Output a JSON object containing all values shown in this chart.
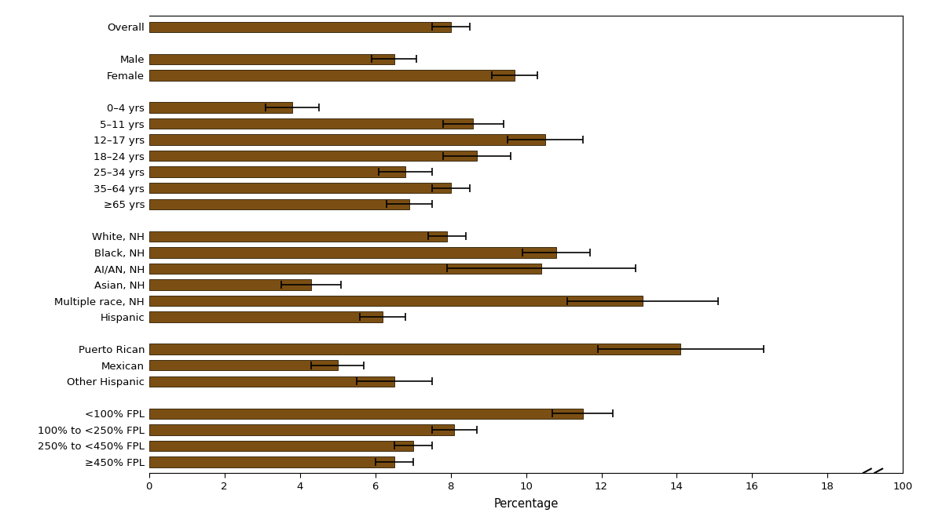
{
  "categories": [
    "Overall",
    "",
    "Male",
    "Female",
    " ",
    "0–4 yrs",
    "5–11 yrs",
    "12–17 yrs",
    "18–24 yrs",
    "25–34 yrs",
    "35–64 yrs",
    "≥65 yrs",
    "  ",
    "White, NH",
    "Black, NH",
    "AI/AN, NH",
    "Asian, NH",
    "Multiple race, NH",
    "Hispanic",
    "   ",
    "Puerto Rican",
    "Mexican",
    "Other Hispanic",
    "    ",
    "<100% FPL",
    "100% to <250% FPL",
    "250% to <450% FPL",
    "≥450% FPL"
  ],
  "values": [
    8.0,
    null,
    6.5,
    9.7,
    null,
    3.8,
    8.6,
    10.5,
    8.7,
    6.8,
    8.0,
    6.9,
    null,
    7.9,
    10.8,
    10.4,
    4.3,
    13.1,
    6.2,
    null,
    14.1,
    5.0,
    6.5,
    null,
    11.5,
    8.1,
    7.0,
    6.5
  ],
  "errors": [
    0.5,
    null,
    0.6,
    0.6,
    null,
    0.7,
    0.8,
    1.0,
    0.9,
    0.7,
    0.5,
    0.6,
    null,
    0.5,
    0.9,
    2.5,
    0.8,
    2.0,
    0.6,
    null,
    2.2,
    0.7,
    1.0,
    null,
    0.8,
    0.6,
    0.5,
    0.5
  ],
  "bar_color": "#7B4F13",
  "bar_edge_color": "#2a1a00",
  "background_color": "#ffffff",
  "axis_label": "Percentage",
  "bar_height": 0.65,
  "label_fontsize": 9.5,
  "tick_fontsize": 9.5
}
